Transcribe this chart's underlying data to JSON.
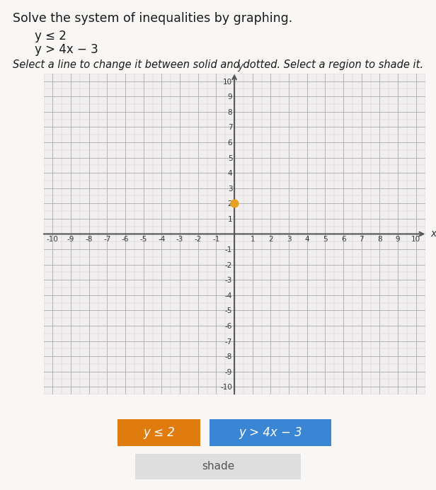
{
  "title_text": "Solve the system of inequalities by graphing.",
  "ineq1": "y ≤ 2",
  "ineq2": "y > 4x − 3",
  "instruction": "Select a line to change it between solid and dotted. Select a region to shade it.",
  "xlim": [
    -10,
    10
  ],
  "ylim": [
    -10,
    10
  ],
  "xlabel": "x",
  "ylabel": "y",
  "grid_minor_color": "#cccccc",
  "grid_major_color": "#aaaaaa",
  "bg_color": "#f0eeee",
  "axis_color": "#555555",
  "dot_x": 0,
  "dot_y": 2,
  "dot_color": "#e8a020",
  "dot_size": 60,
  "btn1_color": "#e07b10",
  "btn2_color": "#3a86d4",
  "btn1_label": "y ≤ 2",
  "btn2_label": "y > 4x − 3",
  "shade_label": "shade",
  "title_fontsize": 12.5,
  "ineq_fontsize": 12,
  "instruction_fontsize": 10.5,
  "tick_fontsize": 7.5,
  "axis_label_fontsize": 10,
  "fig_bg": "#f8f7f5"
}
